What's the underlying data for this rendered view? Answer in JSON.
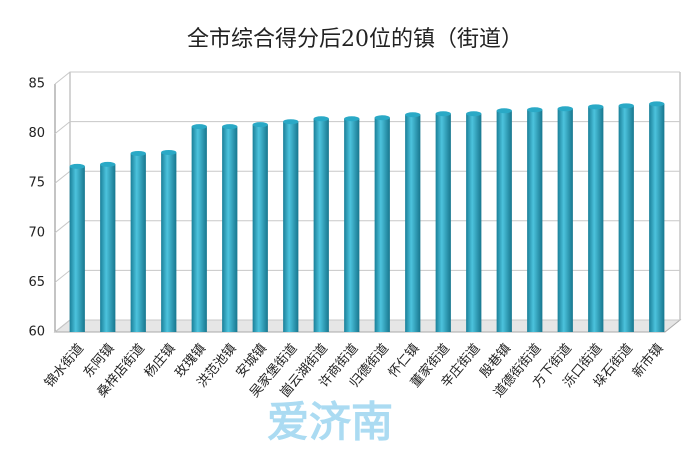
{
  "chart_data": {
    "type": "bar",
    "title": "全市综合得分后20位的镇（街道）",
    "categories": [
      "锦水街道",
      "东阿镇",
      "桑梓店街道",
      "杨庄镇",
      "玫瑰镇",
      "洪范池镇",
      "安城镇",
      "吴家堡街道",
      "崮云湖街道",
      "许商街道",
      "归德街道",
      "怀仁镇",
      "董家街道",
      "辛庄街道",
      "殷巷镇",
      "道德街街道",
      "方下街道",
      "泺口街道",
      "垛石街道",
      "新市镇"
    ],
    "values": [
      76.7,
      76.9,
      78.0,
      78.1,
      80.7,
      80.7,
      80.9,
      81.2,
      81.5,
      81.5,
      81.6,
      81.9,
      82.0,
      82.0,
      82.3,
      82.4,
      82.5,
      82.7,
      82.8,
      83.0
    ],
    "color": "#2aa9c6",
    "ylim": [
      60,
      85
    ],
    "yticks": [
      60,
      65,
      70,
      75,
      80,
      85
    ],
    "grid": true,
    "watermark": "爱济南"
  }
}
